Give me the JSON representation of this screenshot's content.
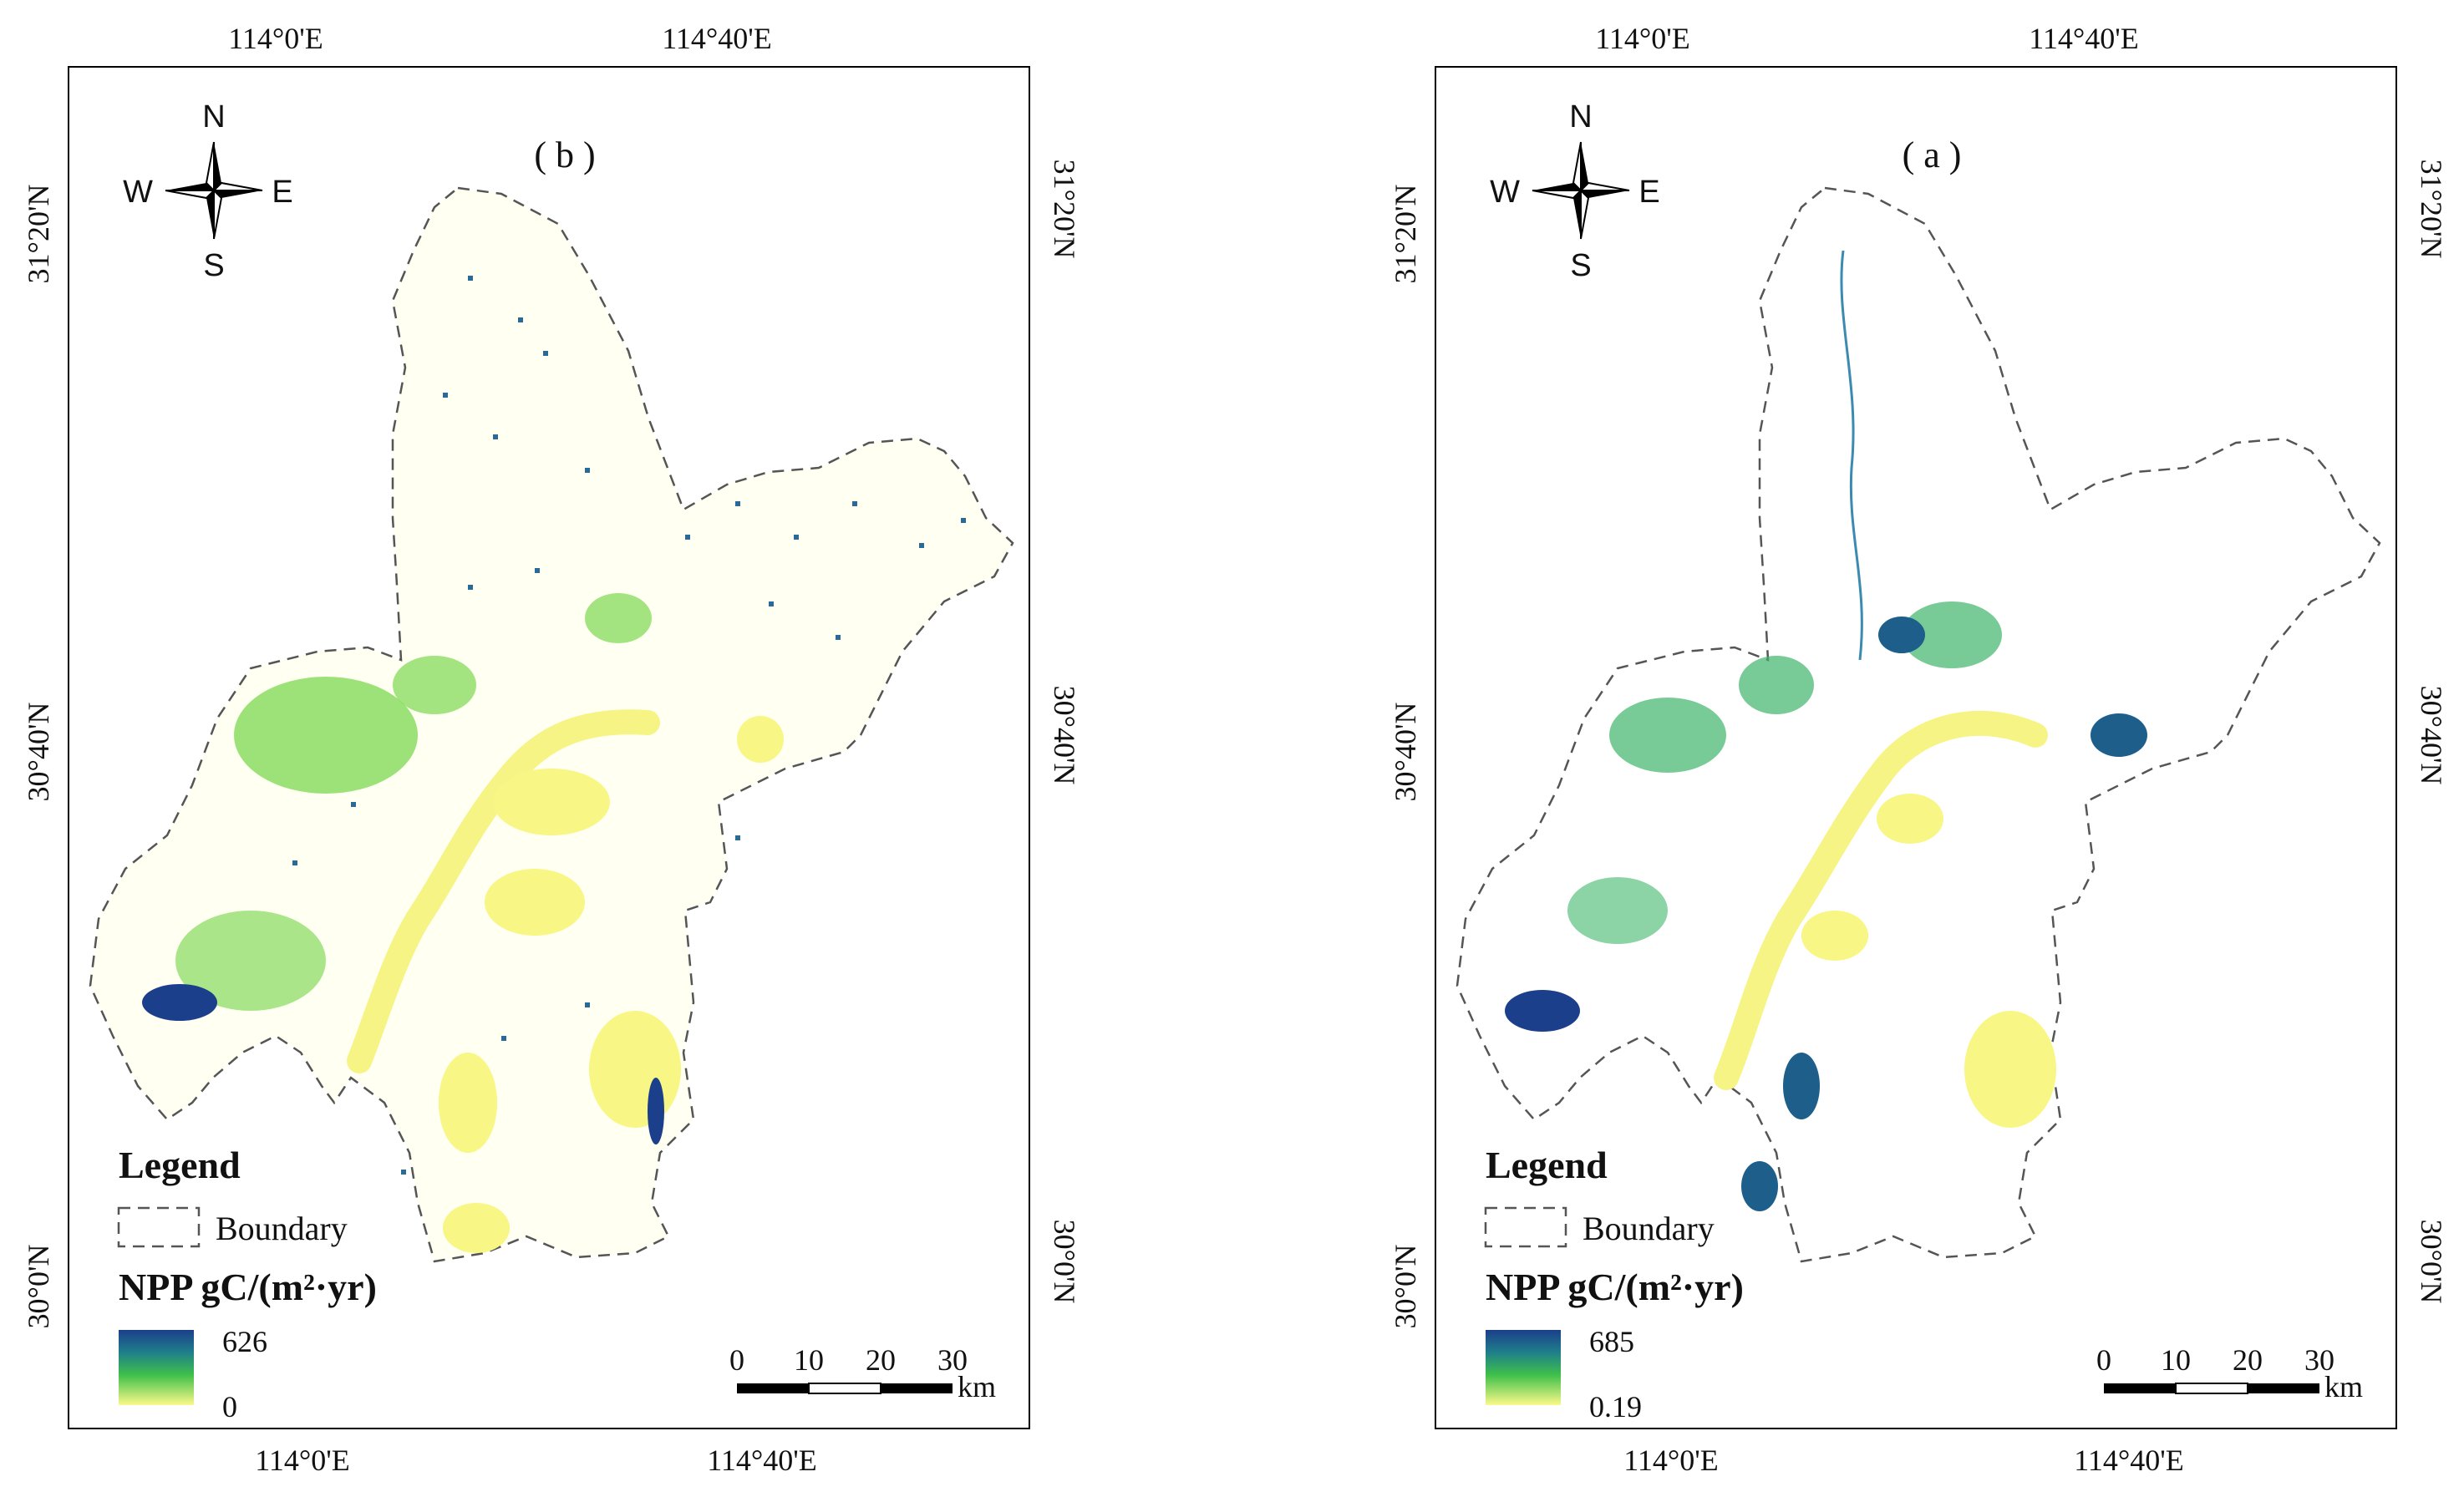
{
  "panels": [
    {
      "panel_label": "( b )",
      "lon_ticks": [
        "114°0'E",
        "114°40'E"
      ],
      "lat_ticks": [
        "31°20'N",
        "30°40'N",
        "30°0'N"
      ],
      "compass": {
        "n": "N",
        "s": "S",
        "e": "E",
        "w": "W"
      },
      "legend": {
        "title": "Legend",
        "boundary_label": "Boundary",
        "npp_label": "NPP gC/(m²·yr)",
        "max": "626",
        "min": "0"
      },
      "scale": {
        "ticks": [
          "0",
          "10",
          "20",
          "30"
        ],
        "unit": "km"
      },
      "colors": {
        "high": "#1b3f8b",
        "mid": "#3fc04a",
        "low": "#fbf98a"
      }
    },
    {
      "panel_label": "( a )",
      "lon_ticks": [
        "114°0'E",
        "114°40'E"
      ],
      "lat_ticks": [
        "31°20'N",
        "30°40'N",
        "30°0'N"
      ],
      "compass": {
        "n": "N",
        "s": "S",
        "e": "E",
        "w": "W"
      },
      "legend": {
        "title": "Legend",
        "boundary_label": "Boundary",
        "npp_label": "NPP gC/(m²·yr)",
        "max": "685",
        "min": "0.19"
      },
      "scale": {
        "ticks": [
          "0",
          "10",
          "20",
          "30"
        ],
        "unit": "km"
      },
      "colors": {
        "high": "#1b3f8b",
        "mid": "#3fc04a",
        "low": "#fbf98a"
      }
    }
  ]
}
